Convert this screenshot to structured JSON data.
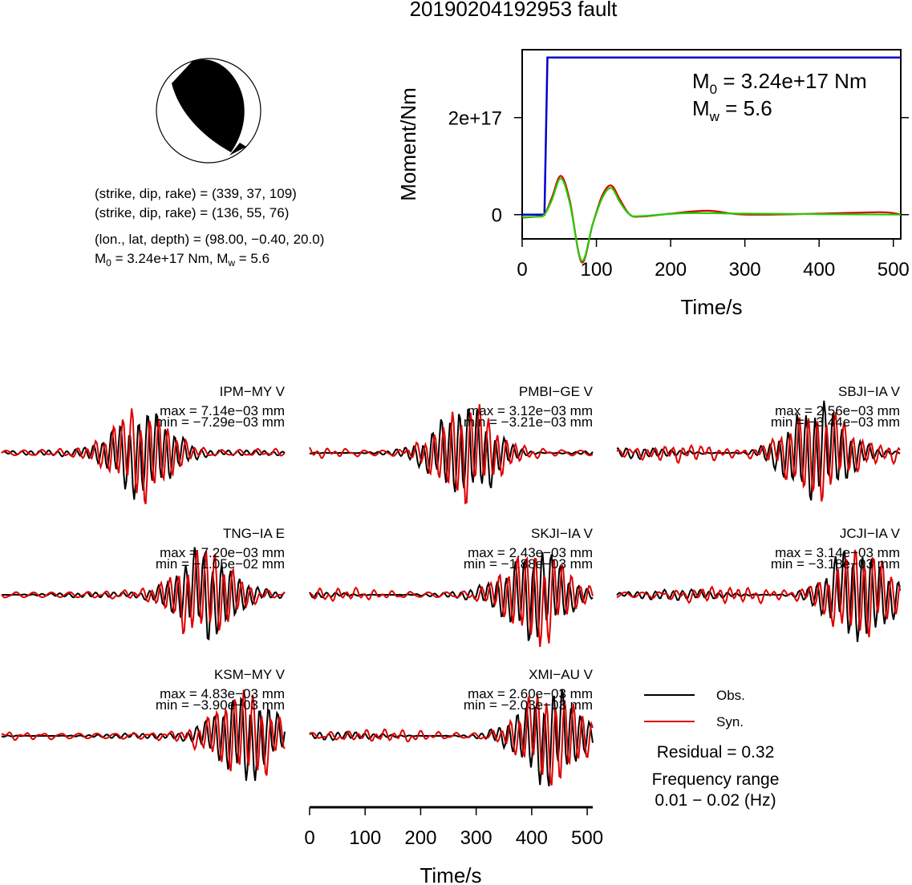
{
  "title": "20190204192953 fault",
  "info": {
    "plane1": "(strike, dip, rake) = (339, 37, 109)",
    "plane2": "(strike, dip, rake) = (136, 55, 76)",
    "location": "(lon., lat, depth) = (98.00, −0.40, 20.0)",
    "m0_prefix": "M",
    "m0_sub": "0",
    "m0_rest": " = 3.24e+17 Nm, M",
    "mw_sub": "w",
    "mw_rest": " = 5.6"
  },
  "moment_plot": {
    "ylabel": "Moment/Nm",
    "xlabel": "Time/s",
    "xticks": [
      "0",
      "100",
      "200",
      "300",
      "400",
      "500"
    ],
    "yticks": [
      "0",
      "2e+17"
    ],
    "m0_main": "M",
    "m0_sub": "0",
    "m0_value": " = 3.24e+17 Nm",
    "mw_main": "M",
    "mw_sub": "w",
    "mw_value": " = 5.6"
  },
  "chart_data": [
    {
      "type": "line",
      "panel": "moment",
      "xlabel": "Time/s",
      "ylabel": "Moment/Nm",
      "xlim": [
        0,
        510
      ],
      "ylim": [
        -5e+16,
        3.4e+17
      ],
      "series": [
        {
          "color": "#0000cc",
          "x": [
            0,
            30,
            34,
            510
          ],
          "y": [
            0,
            0,
            3.24e+17,
            3.24e+17
          ]
        },
        {
          "color": "#dd0000",
          "x": [
            0,
            20,
            30,
            40,
            52,
            64,
            80,
            95,
            108,
            120,
            132,
            145,
            160,
            200,
            250,
            300,
            400,
            480,
            500,
            510
          ],
          "y": [
            -6000000000000000.0,
            -4000000000000000.0,
            0,
            3.5e+16,
            8e+16,
            3e+16,
            -9.8e+16,
            -2e+16,
            4e+16,
            6e+16,
            3e+16,
            0,
            -4000000000000000.0,
            2000000000000000.0,
            8000000000000000.0,
            0,
            2000000000000000.0,
            5000000000000000.0,
            3000000000000000.0,
            0
          ]
        },
        {
          "color": "#22cc00",
          "x": [
            0,
            20,
            30,
            40,
            52,
            64,
            80,
            95,
            108,
            120,
            132,
            145,
            160,
            220,
            300,
            400,
            510
          ],
          "y": [
            -5000000000000000.0,
            -4000000000000000.0,
            0,
            3e+16,
            7.5e+16,
            2.5e+16,
            -9.5e+16,
            -2e+16,
            3.5e+16,
            5.5e+16,
            2.5e+16,
            0,
            -3000000000000000.0,
            3000000000000000.0,
            2000000000000000.0,
            1000000000000000.0,
            0
          ]
        }
      ]
    },
    {
      "type": "line",
      "panel": "waveforms",
      "xlabel": "Time/s",
      "xlim": [
        0,
        510
      ],
      "series": [
        {
          "name": "Obs.",
          "color": "#000000"
        },
        {
          "name": "Syn.",
          "color": "#dd0000"
        }
      ]
    }
  ],
  "stations": [
    {
      "name": "IPM−MY V",
      "max": "max = 7.14e−03 mm",
      "min": "min = −7.29e−03 mm"
    },
    {
      "name": "PMBI−GE V",
      "max": "max = 3.12e−03 mm",
      "min": "min = −3.21e−03 mm"
    },
    {
      "name": "SBJI−IA V",
      "max": "max = 2.56e−03 mm",
      "min": "min = −3.44e−03 mm"
    },
    {
      "name": "TNG−IA E",
      "max": "max = 7.20e−03 mm",
      "min": "min = −1.05e−02 mm"
    },
    {
      "name": "SKJI−IA V",
      "max": "max = 2.43e−03 mm",
      "min": "min = −1.88e−03 mm"
    },
    {
      "name": "JCJI−IA V",
      "max": "max = 3.14e−03 mm",
      "min": "min = −3.18e−03 mm"
    },
    {
      "name": "KSM−MY V",
      "max": "max = 4.83e−03 mm",
      "min": "min = −3.90e−03 mm"
    },
    {
      "name": "XMI−AU V",
      "max": "max = 2.60e−03 mm",
      "min": "min = −2.03e−03 mm"
    }
  ],
  "legend": {
    "obs_label": "Obs.",
    "syn_label": "Syn.",
    "residual": "Residual = 0.32",
    "freq_title": "Frequency range",
    "freq_value": "0.01 − 0.02 (Hz)"
  },
  "wave_axis": {
    "xlabel": "Time/s",
    "xticks": [
      "0",
      "100",
      "200",
      "300",
      "400",
      "500"
    ]
  },
  "colors": {
    "obs": "#000000",
    "syn": "#dd0000",
    "moment": "#0000cc",
    "stf_green": "#22cc00"
  }
}
